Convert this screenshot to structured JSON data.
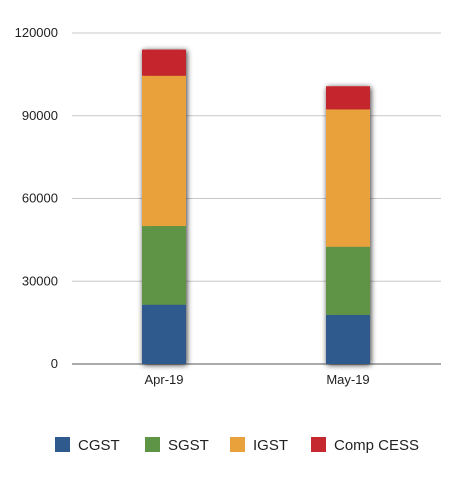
{
  "chart_data": {
    "type": "bar",
    "stacked": true,
    "categories": [
      "Apr-19",
      "May-19"
    ],
    "series": [
      {
        "name": "CGST",
        "color": "#2e5a8e",
        "values": [
          21500,
          17800
        ]
      },
      {
        "name": "SGST",
        "color": "#5e9446",
        "values": [
          28500,
          24700
        ]
      },
      {
        "name": "IGST",
        "color": "#e9a23b",
        "values": [
          54500,
          49800
        ]
      },
      {
        "name": "Comp CESS",
        "color": "#c5282f",
        "values": [
          9500,
          8400
        ]
      }
    ],
    "yticks": [
      "0",
      "30000",
      "60000",
      "90000",
      "120000"
    ],
    "ylim": [
      0,
      120000
    ],
    "grid": true,
    "legend_position": "bottom"
  }
}
